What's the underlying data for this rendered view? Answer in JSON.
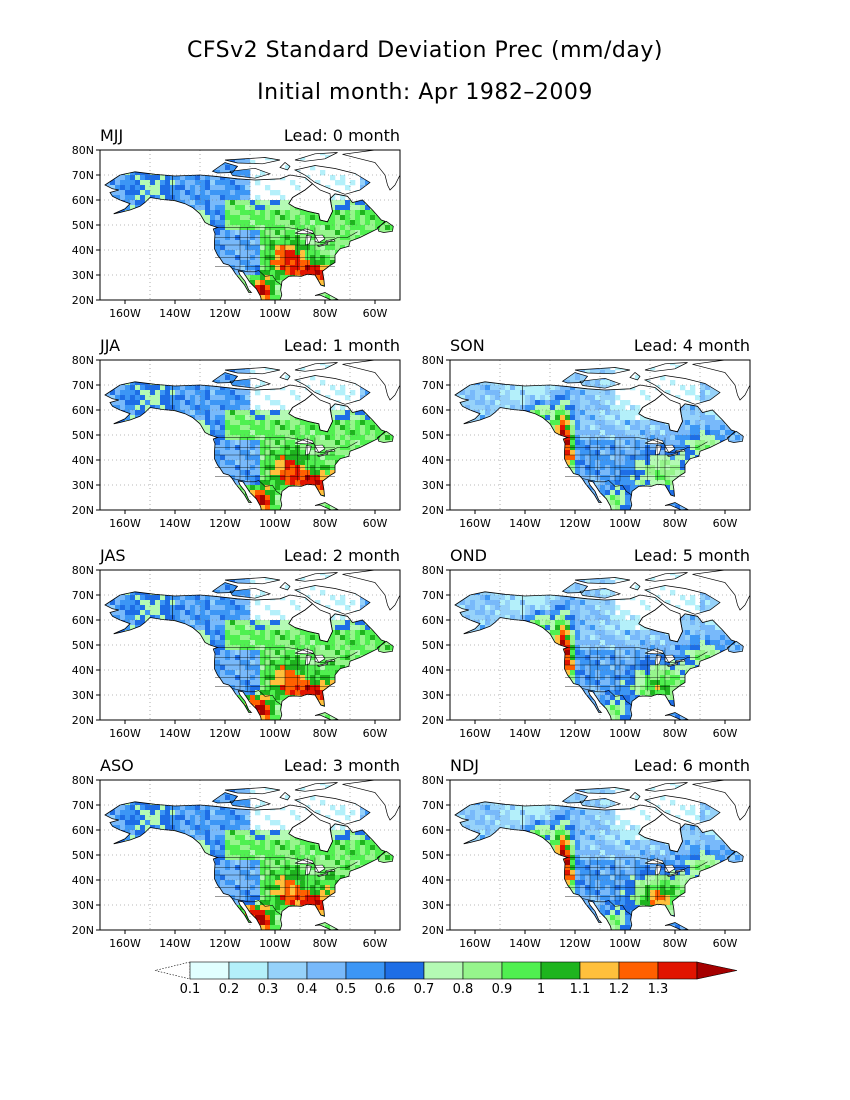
{
  "title_line1": "CFSv2 Standard Deviation Prec (mm/day)",
  "title_line2": "Initial month: Apr 1982–2009",
  "lat_labels": [
    "20N",
    "30N",
    "40N",
    "50N",
    "60N",
    "70N",
    "80N"
  ],
  "lon_labels": [
    "160W",
    "140W",
    "120W",
    "100W",
    "80W",
    "60W"
  ],
  "panels": [
    {
      "season": "MJJ",
      "lead": "Lead: 0 month",
      "profile": "warm0"
    },
    {
      "season": "JJA",
      "lead": "Lead: 1 month",
      "profile": "warm1"
    },
    {
      "season": "JAS",
      "lead": "Lead: 2 month",
      "profile": "warm2"
    },
    {
      "season": "ASO",
      "lead": "Lead: 3 month",
      "profile": "warm3"
    },
    {
      "season": "SON",
      "lead": "Lead: 4 month",
      "profile": "cold4"
    },
    {
      "season": "OND",
      "lead": "Lead: 5 month",
      "profile": "cold5"
    },
    {
      "season": "NDJ",
      "lead": "Lead: 6 month",
      "profile": "cold6"
    }
  ],
  "colorbar": {
    "labels": [
      "0.1",
      "0.2",
      "0.3",
      "0.4",
      "0.5",
      "0.6",
      "0.7",
      "0.8",
      "0.9",
      "1",
      "1.1",
      "1.2",
      "1.3"
    ],
    "colors": [
      "#e1ffff",
      "#b4f0fa",
      "#96d2fa",
      "#78b9fa",
      "#3c96f5",
      "#1e6ee6",
      "#b4fab4",
      "#96f58c",
      "#50f050",
      "#1eb41e",
      "#ffc03c",
      "#ff6000",
      "#e11400",
      "#a50000"
    ],
    "under_color": "#ffffff"
  }
}
